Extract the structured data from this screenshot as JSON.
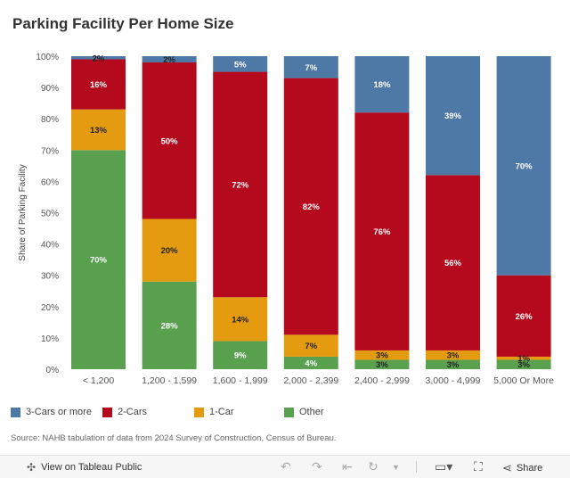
{
  "title": "Parking Facility Per Home Size",
  "chart_data": {
    "type": "bar",
    "stacked": true,
    "title": "Parking Facility Per Home Size",
    "xlabel": "",
    "ylabel": "Share of Parking Facility",
    "ylim": [
      0,
      100
    ],
    "yticks": [
      "0%",
      "10%",
      "20%",
      "30%",
      "40%",
      "50%",
      "60%",
      "70%",
      "80%",
      "90%",
      "100%"
    ],
    "categories": [
      "< 1,200",
      "1,200 - 1,599",
      "1,600 - 1,999",
      "2,000 - 2,399",
      "2,400 - 2,999",
      "3,000 - 4,999",
      "5,000 Or More"
    ],
    "series": [
      {
        "name": "Other",
        "color": "#59a14f",
        "values": [
          70,
          28,
          9,
          4,
          3,
          3,
          3
        ],
        "labels": [
          "70%",
          "28%",
          "9%",
          "4%",
          "3%",
          "3%",
          "3%"
        ]
      },
      {
        "name": "1-Car",
        "color": "#e49b0f",
        "values": [
          13,
          20,
          14,
          7,
          3,
          3,
          1
        ],
        "labels": [
          "13%",
          "20%",
          "14%",
          "7%",
          "3%",
          "3%",
          "1%"
        ]
      },
      {
        "name": "2-Cars",
        "color": "#b5091d",
        "values": [
          16,
          50,
          72,
          82,
          76,
          56,
          26
        ],
        "labels": [
          "16%",
          "50%",
          "72%",
          "82%",
          "76%",
          "56%",
          "26%"
        ]
      },
      {
        "name": "3-Cars or more",
        "color": "#4e79a7",
        "values": [
          2,
          2,
          5,
          7,
          18,
          39,
          70
        ],
        "labels": [
          "2%",
          "2%",
          "5%",
          "7%",
          "18%",
          "39%",
          "70%"
        ]
      }
    ],
    "legend_order": [
      "3-Cars or more",
      "2-Cars",
      "1-Car",
      "Other"
    ],
    "legend_position": "bottom-left"
  },
  "source": "Source: NAHB tabulation of data from 2024 Survey of Construction, Census of Bureau.",
  "toolbar": {
    "view_label": "View on Tableau Public",
    "share_label": "Share"
  }
}
